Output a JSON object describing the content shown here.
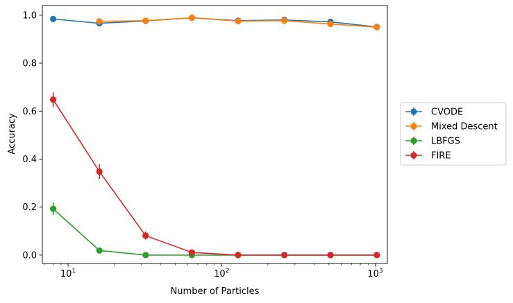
{
  "chart_data": {
    "type": "line",
    "xscale": "log",
    "x": [
      8,
      16,
      32,
      64,
      128,
      256,
      512,
      1024
    ],
    "xlim": [
      6.8,
      1200
    ],
    "ylim": [
      -0.035,
      1.04
    ],
    "xlabel": "Number of Particles",
    "ylabel": "Accuracy",
    "x_ticks": [
      {
        "value": 10,
        "base": "10",
        "exp": "1"
      },
      {
        "value": 100,
        "base": "10",
        "exp": "2"
      },
      {
        "value": 1000,
        "base": "10",
        "exp": "3"
      }
    ],
    "y_ticks": [
      {
        "value": 0.0,
        "label": "0.0"
      },
      {
        "value": 0.2,
        "label": "0.2"
      },
      {
        "value": 0.4,
        "label": "0.4"
      },
      {
        "value": 0.6,
        "label": "0.6"
      },
      {
        "value": 0.8,
        "label": "0.8"
      },
      {
        "value": 1.0,
        "label": "1.0"
      }
    ],
    "legend_position": "center-right-outside",
    "series": [
      {
        "name": "CVODE",
        "color": "#1f77b4",
        "values": [
          0.984,
          0.966,
          0.976,
          0.989,
          0.977,
          0.98,
          0.972,
          0.951
        ],
        "errors": [
          0.005,
          0.006,
          0.005,
          0.004,
          0.005,
          0.005,
          0.005,
          0.006
        ]
      },
      {
        "name": "Mixed Descent",
        "color": "#ff7f0e",
        "values": [
          null,
          0.974,
          0.977,
          0.989,
          0.975,
          0.977,
          0.963,
          0.95
        ],
        "errors": [
          null,
          0.005,
          0.005,
          0.004,
          0.005,
          0.005,
          0.005,
          0.006
        ]
      },
      {
        "name": "LBFGS",
        "color": "#2ca02c",
        "values": [
          0.193,
          0.019,
          0.0,
          0.0,
          0.0,
          0.0,
          0.0,
          0.0
        ],
        "errors": [
          0.027,
          0.006,
          0.0,
          0.0,
          0.0,
          0.0,
          0.0,
          0.0
        ]
      },
      {
        "name": "FIRE",
        "color": "#d62728",
        "values": [
          0.648,
          0.348,
          0.081,
          0.011,
          0.0,
          0.0,
          0.0,
          0.0
        ],
        "errors": [
          0.03,
          0.03,
          0.017,
          0.006,
          0.0,
          0.0,
          0.0,
          0.0
        ]
      }
    ]
  }
}
